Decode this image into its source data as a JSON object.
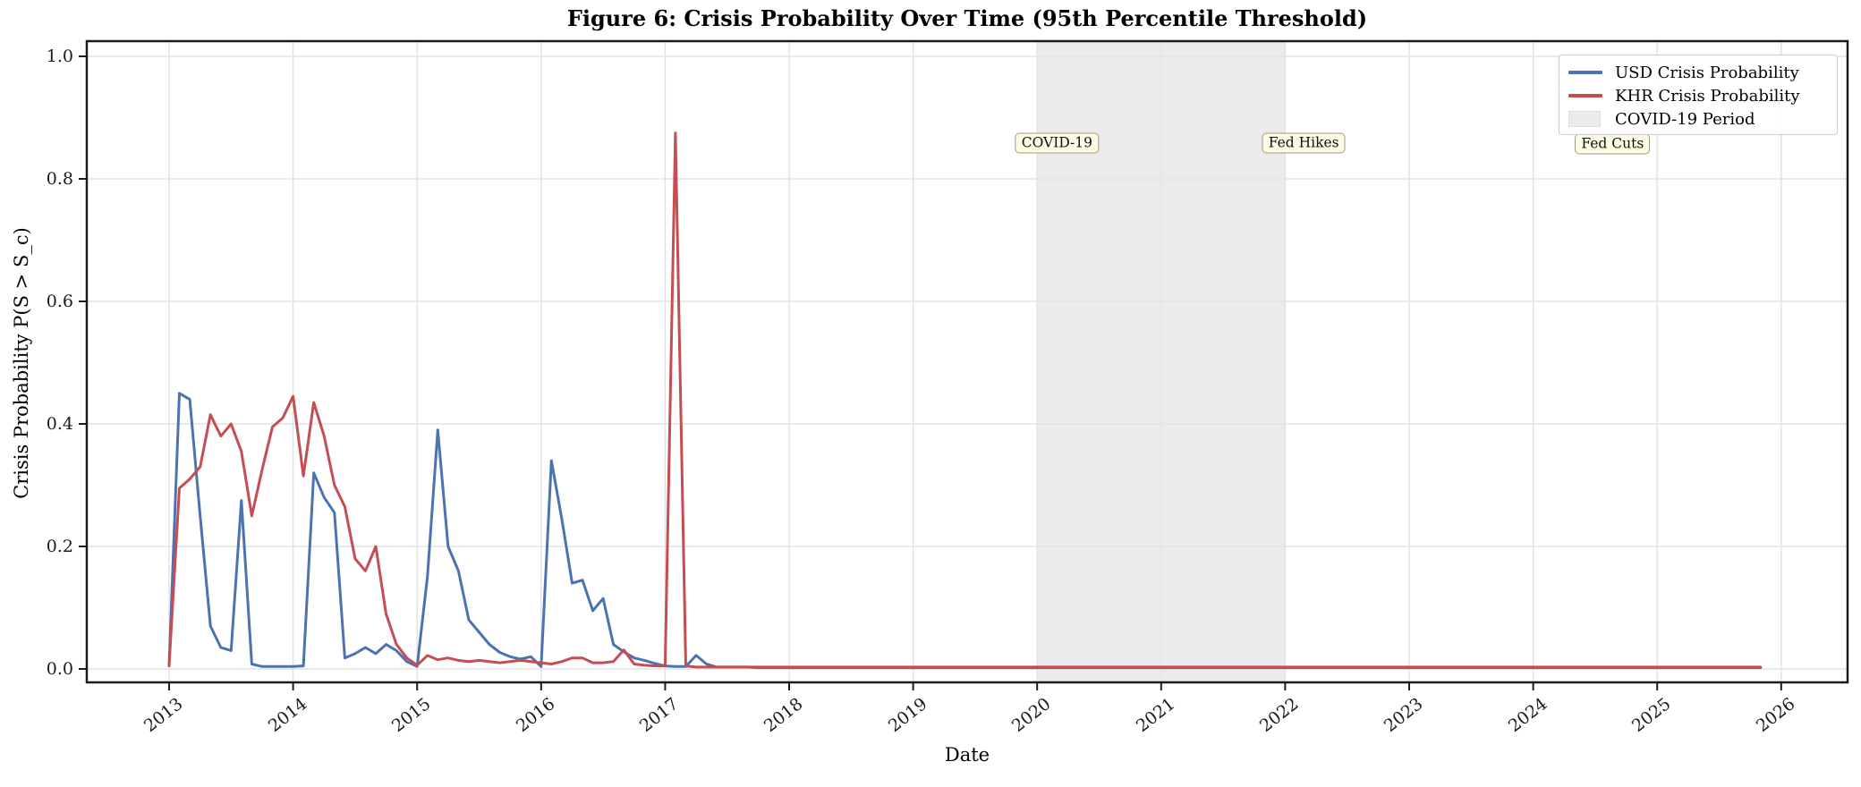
{
  "figure": {
    "title": "Figure 6: Crisis Probability Over Time (95th Percentile Threshold)"
  },
  "axes": {
    "x_label": "Date",
    "y_label": "Crisis Probability P(S > S_c)",
    "x_tick_labels": [
      "2013",
      "2014",
      "2015",
      "2016",
      "2017",
      "2018",
      "2019",
      "2020",
      "2021",
      "2022",
      "2023",
      "2024",
      "2025",
      "2026"
    ],
    "y_tick_labels": [
      "0.0",
      "0.2",
      "0.4",
      "0.6",
      "0.8",
      "1.0"
    ]
  },
  "legend": {
    "items": [
      {
        "label": "USD Crisis Probability",
        "type": "line",
        "color": "#4C72B0"
      },
      {
        "label": "KHR Crisis Probability",
        "type": "line",
        "color": "#C44E52"
      },
      {
        "label": "COVID-19 Period",
        "type": "patch",
        "color": "#ebebeb"
      }
    ]
  },
  "chart_data": {
    "type": "line",
    "title": "Figure 6: Crisis Probability Over Time (95th Percentile Threshold)",
    "xlabel": "Date",
    "ylabel": "Crisis Probability P(S > S_c)",
    "x_axis": {
      "unit": "monthly",
      "start": "2013-01",
      "end": "2025-11",
      "tick_years": [
        2013,
        2014,
        2015,
        2016,
        2017,
        2018,
        2019,
        2020,
        2021,
        2022,
        2023,
        2024,
        2025,
        2026
      ]
    },
    "ylim": [
      -0.022,
      1.025
    ],
    "y_ticks": [
      0.0,
      0.2,
      0.4,
      0.6,
      0.8,
      1.0
    ],
    "grid": true,
    "legend_position": "upper right",
    "shaded_region": {
      "label": "COVID-19 Period",
      "x_start": 2020.0,
      "x_end": 2022.0,
      "color": "#ebebeb"
    },
    "annotations": [
      {
        "label": "COVID-19",
        "x": 2020.16,
        "y": 0.858
      },
      {
        "label": "Fed Hikes",
        "x": 2022.15,
        "y": 0.858
      },
      {
        "label": "Fed Cuts",
        "x": 2024.64,
        "y": 0.857
      }
    ],
    "series": [
      {
        "name": "USD Crisis Probability",
        "color": "#4C72B0",
        "start": "2013-01",
        "freq": "monthly",
        "values": [
          0.005,
          0.45,
          0.44,
          0.25,
          0.07,
          0.035,
          0.03,
          0.275,
          0.008,
          0.004,
          0.004,
          0.004,
          0.004,
          0.005,
          0.32,
          0.28,
          0.255,
          0.018,
          0.025,
          0.035,
          0.025,
          0.04,
          0.03,
          0.012,
          0.004,
          0.15,
          0.39,
          0.2,
          0.16,
          0.08,
          0.06,
          0.04,
          0.027,
          0.02,
          0.016,
          0.02,
          0.004,
          0.34,
          0.245,
          0.14,
          0.145,
          0.095,
          0.115,
          0.04,
          0.028,
          0.018,
          0.014,
          0.009,
          0.005,
          0.004,
          0.004,
          0.022,
          0.008,
          0.003,
          0.003,
          0.003,
          0.003,
          0.002,
          0.002,
          0.002
        ],
        "flat_tail": {
          "value": 0.002,
          "through": "2025-11"
        }
      },
      {
        "name": "KHR Crisis Probability",
        "color": "#C44E52",
        "start": "2013-01",
        "freq": "monthly",
        "values": [
          0.005,
          0.295,
          0.31,
          0.33,
          0.415,
          0.38,
          0.4,
          0.355,
          0.25,
          0.325,
          0.395,
          0.41,
          0.445,
          0.315,
          0.435,
          0.38,
          0.3,
          0.265,
          0.18,
          0.16,
          0.2,
          0.09,
          0.04,
          0.018,
          0.006,
          0.022,
          0.015,
          0.018,
          0.014,
          0.012,
          0.014,
          0.012,
          0.01,
          0.012,
          0.014,
          0.012,
          0.01,
          0.008,
          0.012,
          0.018,
          0.018,
          0.01,
          0.01,
          0.012,
          0.031,
          0.008,
          0.006,
          0.005,
          0.005,
          0.875,
          0.005,
          0.003,
          0.003,
          0.003,
          0.003,
          0.003,
          0.003,
          0.003,
          0.003,
          0.003
        ],
        "flat_tail": {
          "value": 0.003,
          "through": "2025-11"
        }
      }
    ]
  }
}
